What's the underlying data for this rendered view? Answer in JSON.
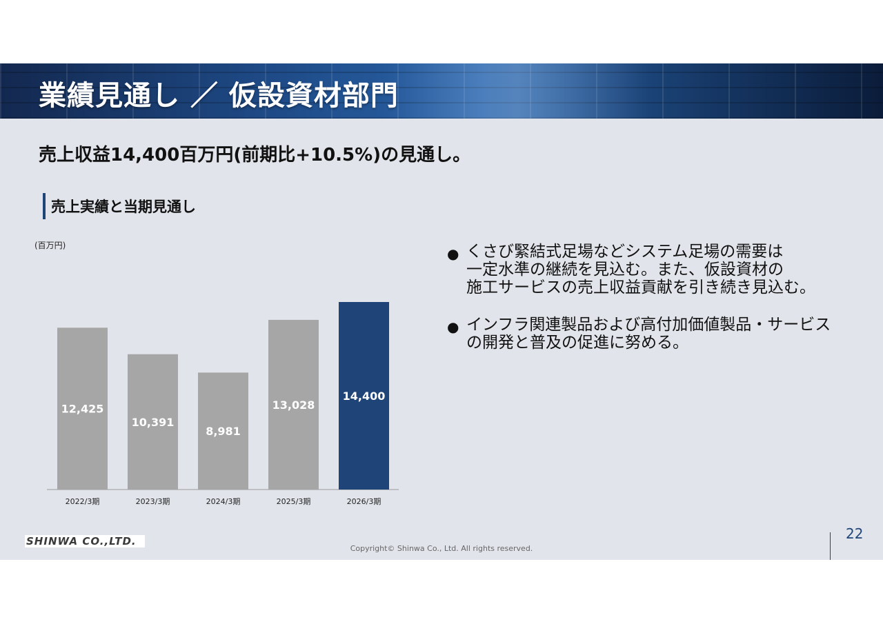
{
  "header": {
    "title": "業績見通し ／ 仮設資材部門"
  },
  "headline": "売上収益14,400百万円(前期比+10.5%)の見通し。",
  "section": {
    "title": "売上実績と当期見通し"
  },
  "chart_data": {
    "type": "bar",
    "unit_label": "(百万円)",
    "categories": [
      "2022/3期",
      "2023/3期",
      "2024/3期",
      "2025/3期",
      "2026/3期"
    ],
    "values": [
      12425,
      10391,
      8981,
      13028,
      14400
    ],
    "value_labels": [
      "12,425",
      "10,391",
      "8,981",
      "13,028",
      "14,400"
    ],
    "colors": [
      "#a6a6a6",
      "#a6a6a6",
      "#a6a6a6",
      "#a6a6a6",
      "#1f4477"
    ],
    "ylim": [
      0,
      14400
    ],
    "grid": false,
    "legend": "none"
  },
  "bullets": [
    {
      "lines": [
        "くさび緊結式足場などシステム足場の需要は",
        "一定水準の継続を見込む。また、仮設資材の",
        "施工サービスの売上収益貢献を引き続き見込む。"
      ]
    },
    {
      "lines": [
        "インフラ関連製品および高付加価値製品・サービス",
        "の開発と普及の促進に努める。"
      ]
    }
  ],
  "bullet_marker": "●",
  "footer": {
    "logo_text": "SHINWA CO.,LTD.",
    "copyright": "Copyright© Shinwa Co., Ltd. All rights reserved.",
    "page_number": "22"
  }
}
